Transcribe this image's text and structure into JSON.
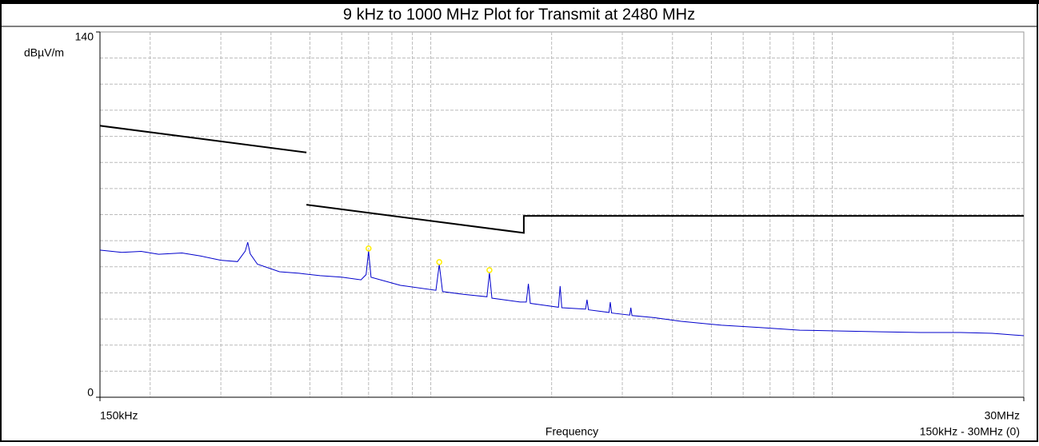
{
  "chart_data": {
    "type": "line",
    "title": "9 kHz to 1000 MHz Plot for Transmit at 2480 MHz",
    "ylabel": "dBµV/m",
    "xlabel": "Frequency",
    "range_note": "150kHz - 30MHz (0)",
    "xscale": "log",
    "xlim": [
      0.15,
      30
    ],
    "ylim": [
      0,
      140
    ],
    "xticks": [
      {
        "value": 0.15,
        "label": "150kHz"
      },
      {
        "value": 30,
        "label": "30MHz"
      }
    ],
    "yticks": [
      0,
      140
    ],
    "xgrid": [
      0.2,
      0.3,
      0.4,
      0.5,
      0.6,
      0.7,
      0.8,
      0.9,
      1,
      2,
      3,
      4,
      5,
      6,
      7,
      8,
      9,
      10,
      20
    ],
    "ygrid": [
      10,
      20,
      30,
      40,
      50,
      60,
      70,
      80,
      90,
      100,
      110,
      120,
      130
    ],
    "grid": true,
    "series": [
      {
        "color": "#000000",
        "x": [
          0.15,
          0.49,
          0.49,
          0.49,
          1.705,
          1.705,
          30
        ],
        "values": [
          104.08,
          93.8,
          null,
          73.8,
          62.97,
          69.5,
          69.5
        ]
      },
      {
        "color": "#0000cc",
        "x": [
          0.15,
          0.17,
          0.19,
          0.21,
          0.24,
          0.266,
          0.3,
          0.33,
          0.345,
          0.35,
          0.355,
          0.37,
          0.42,
          0.47,
          0.53,
          0.6,
          0.67,
          0.69,
          0.7,
          0.71,
          0.84,
          1.03,
          1.05,
          1.07,
          1.2,
          1.38,
          1.4,
          1.42,
          1.67,
          1.73,
          1.75,
          1.77,
          2.08,
          2.1,
          2.12,
          2.43,
          2.45,
          2.47,
          2.78,
          2.8,
          2.82,
          3.13,
          3.15,
          3.17,
          3.6,
          4.2,
          5.3,
          6.6,
          8.3,
          10.5,
          13.2,
          16.6,
          20.9,
          25,
          30
        ],
        "values": [
          56.4,
          55.5,
          55.9,
          54.8,
          55.3,
          54.2,
          52.5,
          52.0,
          56,
          59.4,
          55,
          51.0,
          48.1,
          47.5,
          46.6,
          46.0,
          45.0,
          47,
          56.1,
          46,
          42.9,
          41,
          50.9,
          40.5,
          39.5,
          38.5,
          47.8,
          38.0,
          36.5,
          36.5,
          43.5,
          36,
          34.5,
          42.6,
          34.3,
          33.8,
          37.4,
          33.5,
          32.5,
          36.5,
          32.3,
          31.5,
          34.3,
          31.3,
          30.5,
          29.1,
          27.6,
          26.7,
          25.7,
          25.4,
          25.1,
          24.8,
          24.8,
          24.5,
          23.6
        ]
      }
    ],
    "peak_markers": {
      "color": "#ffee00",
      "x": [
        0.7,
        1.05,
        1.4
      ],
      "values": [
        56.1,
        50.9,
        47.8
      ]
    }
  }
}
